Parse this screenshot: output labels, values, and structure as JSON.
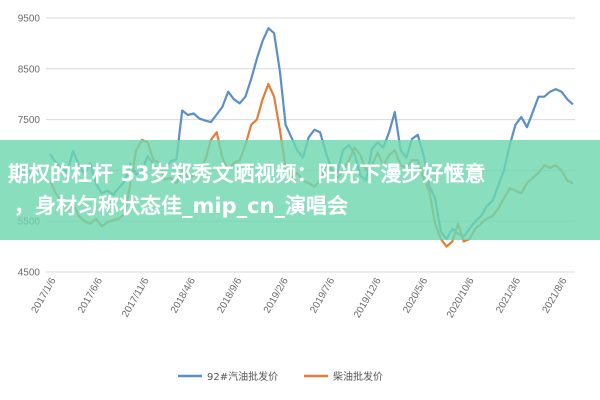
{
  "overlay": {
    "line1": "期权的杠杆 53岁郑秀文晒视频：阳光下漫步好惬意",
    "line2": "，身材匀称状态佳_mip_cn_演唱会",
    "background": "#6ed7af",
    "text_color": "#ffffff"
  },
  "chart_data": {
    "type": "line",
    "title": "",
    "xlabel": "",
    "ylabel": "",
    "ylim": [
      4500,
      9500
    ],
    "yticks": [
      "9500",
      "8500",
      "7500",
      "6500",
      "5500",
      "4500"
    ],
    "xticks": [
      "2017/1/6",
      "2017/6/6",
      "2017/11/6",
      "2018/4/6",
      "2018/9/6",
      "2019/2/6",
      "2019/7/6",
      "2019/12/6",
      "2020/5/6",
      "2020/10/6",
      "2021/3/6",
      "2021/8/6"
    ],
    "grid": true,
    "legend_position": "bottom",
    "series": [
      {
        "name": "92#汽油批发价",
        "color": "#5b8fc9",
        "values": [
          6820,
          6660,
          6550,
          6460,
          6880,
          6620,
          6420,
          6640,
          6240,
          6050,
          6100,
          6020,
          6160,
          6290,
          6630,
          6420,
          6500,
          6780,
          6620,
          6450,
          6480,
          6680,
          6720,
          7680,
          7590,
          7620,
          7520,
          7480,
          7450,
          7600,
          7750,
          8050,
          7900,
          7820,
          7950,
          8300,
          8700,
          9050,
          9300,
          9200,
          8450,
          7400,
          7150,
          6900,
          6750,
          7150,
          7300,
          7250,
          6850,
          6520,
          6450,
          6900,
          7000,
          6820,
          6400,
          6300,
          6920,
          7050,
          6950,
          7250,
          7650,
          6900,
          6750,
          7120,
          7200,
          6800,
          6200,
          5950,
          5300,
          5150,
          5350,
          5250,
          5200,
          5350,
          5500,
          5600,
          5800,
          5900,
          6200,
          6500,
          7000,
          7400,
          7550,
          7350,
          7650,
          7950,
          7950,
          8050,
          8100,
          8050,
          7900,
          7800
        ]
      },
      {
        "name": "柴油批发价",
        "color": "#e27d3b",
        "values": [
          6300,
          6050,
          5900,
          5700,
          5850,
          5600,
          5500,
          5450,
          5550,
          5400,
          5480,
          5520,
          5550,
          5650,
          6250,
          6900,
          7100,
          7050,
          6700,
          6650,
          6320,
          6350,
          6250,
          6500,
          6350,
          6400,
          6500,
          6700,
          7100,
          7250,
          6750,
          6500,
          6650,
          6700,
          7000,
          7400,
          7500,
          7900,
          8200,
          7950,
          7300,
          6550,
          6350,
          6450,
          6300,
          6250,
          6180,
          6300,
          6600,
          6500,
          6350,
          6500,
          6700,
          6950,
          6800,
          6500,
          6600,
          6850,
          6600,
          6800,
          6900,
          6600,
          6550,
          6700,
          6700,
          6350,
          6100,
          5450,
          5150,
          5000,
          5100,
          5450,
          5100,
          5150,
          5350,
          5450,
          5550,
          5600,
          5750,
          5950,
          6150,
          6100,
          6050,
          6250,
          6350,
          6450,
          6600,
          6550,
          6600,
          6500,
          6300,
          6250
        ]
      }
    ]
  }
}
